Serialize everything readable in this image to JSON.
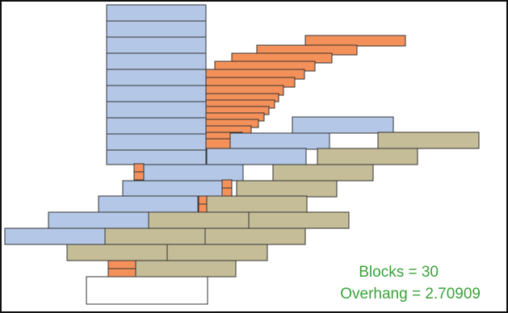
{
  "colors": {
    "frame": "#000000",
    "blue": "#b4c7e7",
    "tan": "#c4bd97",
    "orange": "#f4905a",
    "white": "#ffffff",
    "outline": "#333333",
    "text_green": "#3aa23a"
  },
  "stats": {
    "blocks_text": "Blocks = 30",
    "overhang_text": "Overhang = 2.70909"
  }
}
